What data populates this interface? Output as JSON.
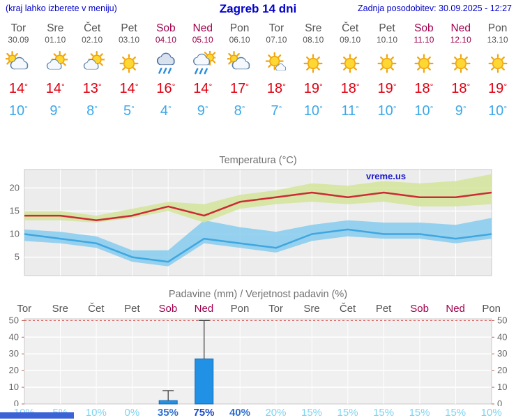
{
  "header": {
    "left_note": "(kraj lahko izberete v meniju)",
    "title": "Zagreb 14 dni",
    "last_update": "Zadnja posodobitev: 30.09.2025 - 12:27"
  },
  "colors": {
    "header_blue": "#0000cc",
    "weekend_red": "#a0004d",
    "tmax_red": "#dd0011",
    "tmin_blue": "#3da8e8",
    "max_line": "#cc2a35",
    "min_line": "#3fa6e0",
    "max_band": "#d4e59a",
    "min_band": "#86ccee",
    "bar_blue": "#2191e6",
    "plot_bg": "#ececec"
  },
  "forecast": {
    "days": [
      {
        "name": "Tor",
        "date": "30.09",
        "weekend": false,
        "icon": "mostly-cloudy",
        "tmax": 14,
        "tmin": 10
      },
      {
        "name": "Sre",
        "date": "01.10",
        "weekend": false,
        "icon": "partly-cloudy",
        "tmax": 14,
        "tmin": 9
      },
      {
        "name": "Čet",
        "date": "02.10",
        "weekend": false,
        "icon": "partly-cloudy",
        "tmax": 13,
        "tmin": 8
      },
      {
        "name": "Pet",
        "date": "03.10",
        "weekend": false,
        "icon": "sunny",
        "tmax": 14,
        "tmin": 5
      },
      {
        "name": "Sob",
        "date": "04.10",
        "weekend": true,
        "icon": "rain",
        "tmax": 16,
        "tmin": 4
      },
      {
        "name": "Ned",
        "date": "05.10",
        "weekend": true,
        "icon": "rain-showers",
        "tmax": 14,
        "tmin": 9
      },
      {
        "name": "Pon",
        "date": "06.10",
        "weekend": false,
        "icon": "mostly-cloudy",
        "tmax": 17,
        "tmin": 8
      },
      {
        "name": "Tor",
        "date": "07.10",
        "weekend": false,
        "icon": "mostly-sunny",
        "tmax": 18,
        "tmin": 7
      },
      {
        "name": "Sre",
        "date": "08.10",
        "weekend": false,
        "icon": "sunny",
        "tmax": 19,
        "tmin": 10
      },
      {
        "name": "Čet",
        "date": "09.10",
        "weekend": false,
        "icon": "sunny",
        "tmax": 18,
        "tmin": 11
      },
      {
        "name": "Pet",
        "date": "10.10",
        "weekend": false,
        "icon": "sunny",
        "tmax": 19,
        "tmin": 10
      },
      {
        "name": "Sob",
        "date": "11.10",
        "weekend": true,
        "icon": "sunny",
        "tmax": 18,
        "tmin": 10
      },
      {
        "name": "Ned",
        "date": "12.10",
        "weekend": true,
        "icon": "sunny",
        "tmax": 18,
        "tmin": 9
      },
      {
        "name": "Pon",
        "date": "13.10",
        "weekend": false,
        "icon": "sunny",
        "tmax": 19,
        "tmin": 10
      }
    ]
  },
  "chart_data": [
    {
      "type": "line",
      "title": "Temperatura (°C)",
      "watermark": "vreme.us",
      "x_labels": [
        "Tor",
        "Sre",
        "Čet",
        "Pet",
        "Sob",
        "Ned",
        "Pon",
        "Tor",
        "Sre",
        "Čet",
        "Pet",
        "Sob",
        "Ned",
        "Pon"
      ],
      "ylim": [
        1,
        24
      ],
      "yticks": [
        5,
        10,
        15,
        20
      ],
      "series": [
        {
          "name": "max-temp",
          "color": "#cc2a35",
          "values": [
            14,
            14,
            13,
            14,
            16,
            14,
            17,
            18,
            19,
            18,
            19,
            18,
            18,
            19
          ]
        },
        {
          "name": "min-temp",
          "color": "#3fa6e0",
          "values": [
            10,
            9,
            8,
            5,
            4,
            9,
            8,
            7,
            10,
            11,
            10,
            10,
            9,
            10
          ]
        }
      ],
      "bands": [
        {
          "name": "min-range",
          "color": "#86ccee",
          "opacity": 0.85,
          "upper": [
            11,
            10.5,
            9.5,
            6.5,
            6.5,
            13,
            11.5,
            10.5,
            12,
            13,
            12.5,
            12.5,
            12,
            13.5
          ],
          "lower": [
            8.5,
            8,
            7,
            4,
            3,
            8,
            7,
            6,
            8.5,
            9.5,
            9,
            9,
            8,
            9
          ]
        },
        {
          "name": "max-range",
          "color": "#d4e59a",
          "opacity": 0.85,
          "upper": [
            15,
            15,
            14,
            15.5,
            17,
            16.5,
            18.5,
            19.5,
            21,
            20.5,
            21.5,
            21,
            21.5,
            23
          ],
          "lower": [
            13,
            13,
            12.5,
            13.5,
            15,
            12.5,
            15.5,
            16.5,
            17,
            16.5,
            17,
            16,
            16,
            16.5
          ]
        }
      ]
    },
    {
      "type": "bar",
      "title": "Padavine (mm) / Verjetnost padavin (%)",
      "categories": [
        "Tor",
        "Sre",
        "Čet",
        "Pet",
        "Sob",
        "Ned",
        "Pon",
        "Tor",
        "Sre",
        "Čet",
        "Pet",
        "Sob",
        "Ned",
        "Pon"
      ],
      "values_mm": [
        0,
        0,
        0,
        0,
        2,
        27,
        0,
        0,
        0,
        0,
        0,
        0,
        0,
        0
      ],
      "whisker_mm": [
        0,
        0,
        0,
        0,
        8,
        50,
        0,
        0,
        0,
        0,
        0,
        0,
        0,
        0
      ],
      "probabilities": [
        10,
        5,
        10,
        0,
        35,
        75,
        40,
        20,
        15,
        15,
        15,
        15,
        15,
        10
      ],
      "ylim": [
        0,
        51
      ],
      "yticks": [
        0,
        10,
        20,
        30,
        40,
        50
      ]
    }
  ]
}
